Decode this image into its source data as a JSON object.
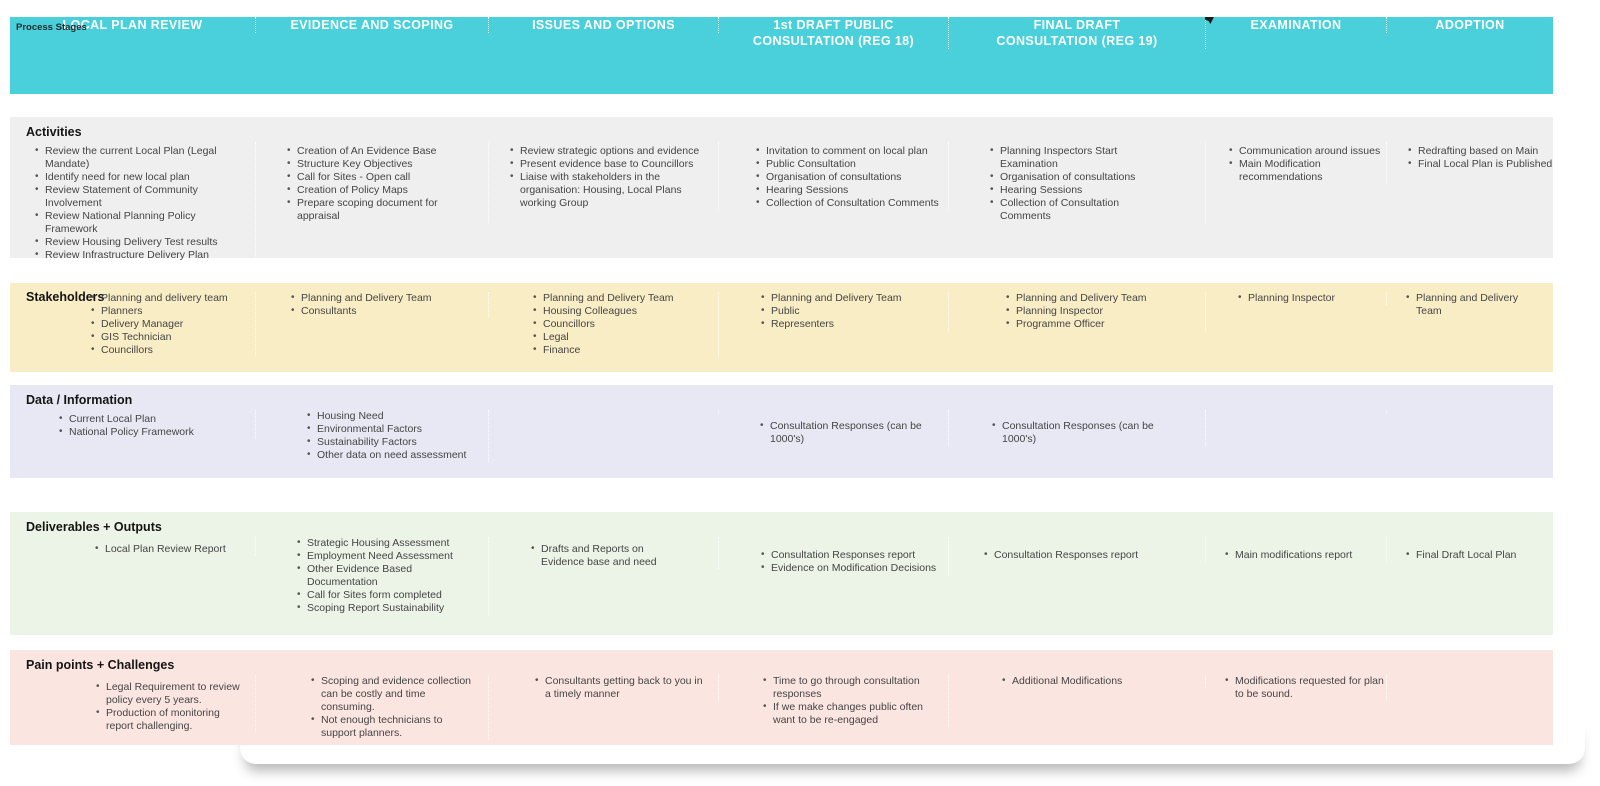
{
  "header": {
    "label": "Process Stages",
    "columns": [
      "LOCAL PLAN REVIEW",
      "EVIDENCE AND SCOPING",
      "ISSUES AND OPTIONS",
      "1st DRAFT PUBLIC CONSULTATION (REG 18)",
      "FINAL DRAFT CONSULTATION (REG 19)",
      "EXAMINATION",
      "ADOPTION"
    ]
  },
  "rows": {
    "activities": {
      "label": "Activities",
      "cells": [
        [
          "Review the current Local Plan (Legal Mandate)",
          "Identify need for new local plan",
          "Review Statement of Community Involvement",
          "Review National Planning Policy Framework",
          "Review Housing Delivery Test results",
          "Review Infrastructure Delivery Plan"
        ],
        [
          "Creation of An Evidence Base",
          "Structure Key Objectives",
          "Call for Sites - Open call",
          "Creation of Policy Maps",
          "Prepare scoping document for appraisal"
        ],
        [
          "Review strategic options and evidence",
          "Present evidence base to Councillors",
          "Liaise with stakeholders in the organisation: Housing, Local Plans working Group"
        ],
        [
          "Invitation to comment on local plan",
          "Public Consultation",
          "Organisation of consultations",
          "Hearing Sessions",
          "Collection of Consultation Comments"
        ],
        [
          "Planning Inspectors Start Examination",
          "Organisation of consultations",
          "Hearing Sessions",
          "Collection of Consultation Comments"
        ],
        [
          "Communication around issues",
          "Main Modification recommendations"
        ],
        [
          "Redrafting based on Main",
          "Final Local Plan is Published"
        ]
      ]
    },
    "stakeholders": {
      "label": "Stakeholders",
      "cells": [
        [
          "Planning and delivery team",
          "Planners",
          "Delivery Manager",
          "GIS Technician",
          "Councillors"
        ],
        [
          "Planning and Delivery Team",
          "Consultants"
        ],
        [
          "Planning and Delivery Team",
          "Housing Colleagues",
          "Councillors",
          "Legal",
          "Finance"
        ],
        [
          "Planning and Delivery Team",
          "Public",
          "Representers"
        ],
        [
          "Planning and Delivery Team",
          "Planning Inspector",
          "Programme Officer"
        ],
        [
          "Planning Inspector"
        ],
        [
          "Planning and Delivery Team"
        ]
      ]
    },
    "data_information": {
      "label": "Data / Information",
      "cells": [
        [
          "Current Local Plan",
          "National Policy Framework"
        ],
        [
          "Housing Need",
          "Environmental Factors",
          "Sustainability Factors",
          "Other data on need assessment"
        ],
        [],
        [
          "Consultation Responses (can be 1000's)"
        ],
        [
          "Consultation Responses (can be 1000's)"
        ],
        [],
        []
      ]
    },
    "deliverables": {
      "label": "Deliverables + Outputs",
      "cells": [
        [
          "Local Plan Review Report"
        ],
        [
          "Strategic Housing Assessment",
          "Employment Need Assessment",
          "Other Evidence Based Documentation",
          "Call for Sites form completed",
          "Scoping Report Sustainability"
        ],
        [
          "Drafts and Reports on Evidence base and need"
        ],
        [
          "Consultation Responses report",
          "Evidence on Modification Decisions"
        ],
        [
          "Consultation Responses report"
        ],
        [
          "Main modifications report"
        ],
        [
          "Final Draft Local Plan"
        ]
      ]
    },
    "pain_points": {
      "label": "Pain points + Challenges",
      "cells": [
        [
          "Legal Requirement to review policy every 5 years.",
          "Production of monitoring report challenging."
        ],
        [
          "Scoping and evidence collection can be costly and time consuming.",
          "Not enough technicians to support planners."
        ],
        [
          "Consultants getting back to you in a timely manner"
        ],
        [
          "Time to go through consultation responses",
          "If we make changes public often want to be re-engaged"
        ],
        [
          "Additional Modifications"
        ],
        [
          "Modifications requested for plan to be sound."
        ],
        []
      ]
    }
  },
  "colors": {
    "header": "#49d0da",
    "activities": "#f0efef",
    "stakeholders": "#f9edc6",
    "data": "#e8e8f4",
    "deliverables": "#ebf4e6",
    "pain": "#fbe5e1"
  }
}
